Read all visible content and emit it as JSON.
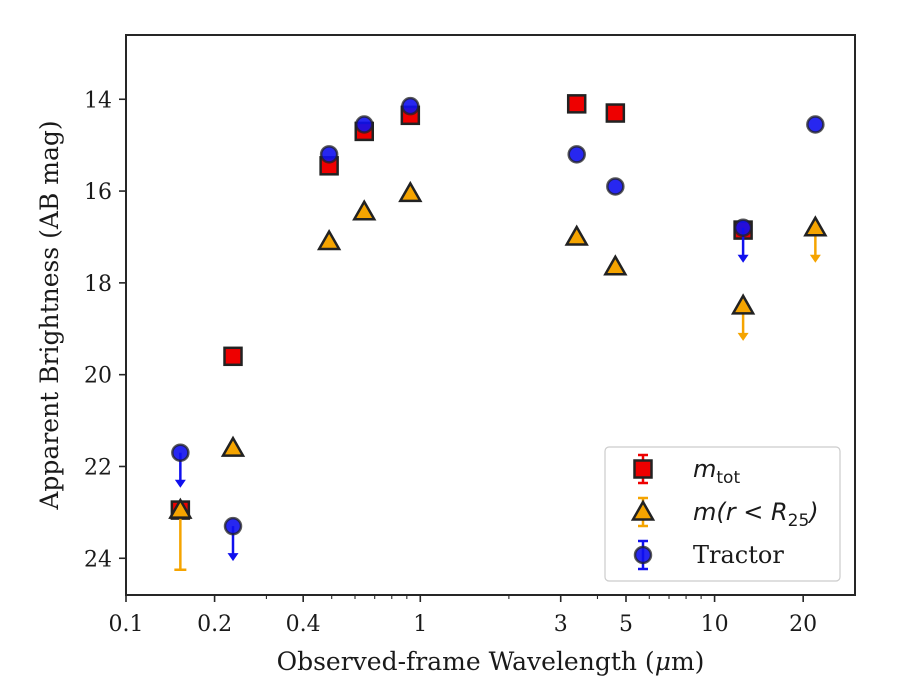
{
  "chart_data": {
    "type": "scatter",
    "xlabel_main": "Observed-frame Wavelength (",
    "xlabel_unit_greek": "μ",
    "xlabel_unit_rest": "m)",
    "ylabel": "Apparent Brightness (AB mag)",
    "x_scale": "log",
    "xlim": [
      0.1,
      30
    ],
    "ylim": [
      24.8,
      12.6
    ],
    "y_inverted": true,
    "x_ticks": [
      0.1,
      0.2,
      0.4,
      1,
      3,
      5,
      10,
      20
    ],
    "x_tick_labels": [
      "0.1",
      "0.2",
      "0.4",
      "1",
      "3",
      "5",
      "10",
      "20"
    ],
    "y_ticks": [
      14,
      16,
      18,
      20,
      22,
      24
    ],
    "y_tick_labels": [
      "14",
      "16",
      "18",
      "20",
      "22",
      "24"
    ],
    "legend_position": "lower-right",
    "series": [
      {
        "key": "mtot",
        "marker": "square",
        "color": "#ee0000",
        "legend_main": "m",
        "legend_sub": "tot",
        "points": [
          {
            "x": 0.153,
            "y": 22.95,
            "err_low": 0,
            "err_high": 0,
            "upper_limit": false
          },
          {
            "x": 0.231,
            "y": 19.6,
            "err_low": 0,
            "err_high": 0,
            "upper_limit": false
          },
          {
            "x": 0.49,
            "y": 15.45,
            "err_low": 0,
            "err_high": 0,
            "upper_limit": false
          },
          {
            "x": 0.645,
            "y": 14.7,
            "err_low": 0,
            "err_high": 0,
            "upper_limit": false
          },
          {
            "x": 0.925,
            "y": 14.35,
            "err_low": 0,
            "err_high": 0,
            "upper_limit": false
          },
          {
            "x": 3.4,
            "y": 14.1,
            "err_low": 0,
            "err_high": 0,
            "upper_limit": false
          },
          {
            "x": 4.6,
            "y": 14.3,
            "err_low": 0,
            "err_high": 0,
            "upper_limit": false
          },
          {
            "x": 12.5,
            "y": 16.85,
            "err_low": 0,
            "err_high": 0,
            "upper_limit": false
          }
        ]
      },
      {
        "key": "mr25",
        "marker": "triangle",
        "color": "#f5a400",
        "legend_main": "m(r < R",
        "legend_sub": "25",
        "legend_tail": ")",
        "points": [
          {
            "x": 0.153,
            "y": 22.95,
            "err_low": 0,
            "err_high": 1.3,
            "upper_limit": false
          },
          {
            "x": 0.231,
            "y": 21.6,
            "err_low": 0,
            "err_high": 0,
            "upper_limit": false
          },
          {
            "x": 0.49,
            "y": 17.1,
            "err_low": 0,
            "err_high": 0,
            "upper_limit": false
          },
          {
            "x": 0.645,
            "y": 16.45,
            "err_low": 0,
            "err_high": 0,
            "upper_limit": false
          },
          {
            "x": 0.925,
            "y": 16.05,
            "err_low": 0,
            "err_high": 0,
            "upper_limit": false
          },
          {
            "x": 3.4,
            "y": 17.0,
            "err_low": 0,
            "err_high": 0,
            "upper_limit": false
          },
          {
            "x": 4.6,
            "y": 17.65,
            "err_low": 0,
            "err_high": 0,
            "upper_limit": false
          },
          {
            "x": 12.5,
            "y": 18.5,
            "err_low": 0,
            "err_high": 0,
            "upper_limit": true
          },
          {
            "x": 22.0,
            "y": 16.8,
            "err_low": 0,
            "err_high": 0,
            "upper_limit": true
          }
        ]
      },
      {
        "key": "tractor",
        "marker": "circle",
        "color": "#1010ee",
        "legend_main": "Tractor",
        "points": [
          {
            "x": 0.153,
            "y": 21.7,
            "err_low": 0,
            "err_high": 0,
            "upper_limit": true
          },
          {
            "x": 0.231,
            "y": 23.3,
            "err_low": 0,
            "err_high": 0,
            "upper_limit": true
          },
          {
            "x": 0.49,
            "y": 15.2,
            "err_low": 0,
            "err_high": 0,
            "upper_limit": false
          },
          {
            "x": 0.645,
            "y": 14.55,
            "err_low": 0,
            "err_high": 0,
            "upper_limit": false
          },
          {
            "x": 0.925,
            "y": 14.15,
            "err_low": 0,
            "err_high": 0,
            "upper_limit": false
          },
          {
            "x": 3.4,
            "y": 15.2,
            "err_low": 0,
            "err_high": 0,
            "upper_limit": false
          },
          {
            "x": 4.6,
            "y": 15.9,
            "err_low": 0,
            "err_high": 0,
            "upper_limit": false
          },
          {
            "x": 12.5,
            "y": 16.8,
            "err_low": 0,
            "err_high": 0,
            "upper_limit": true
          },
          {
            "x": 22.0,
            "y": 14.55,
            "err_low": 0,
            "err_high": 0,
            "upper_limit": false
          }
        ]
      }
    ]
  }
}
